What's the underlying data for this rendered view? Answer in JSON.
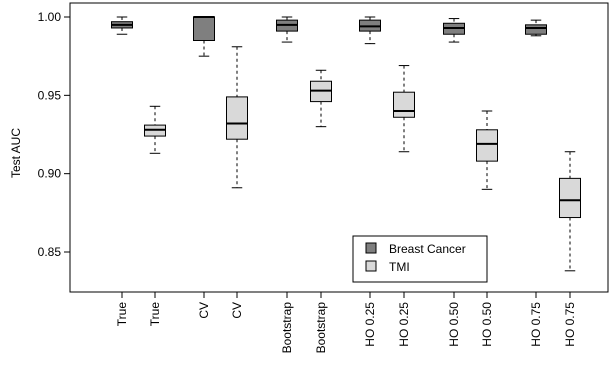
{
  "chart_data": {
    "type": "boxplot",
    "title": "",
    "xlabel": "",
    "ylabel": "Test AUC",
    "ylim": [
      0.82,
      1.0
    ],
    "yticks": [
      0.85,
      0.9,
      0.95,
      1.0
    ],
    "ytick_labels": [
      "0.85",
      "0.90",
      "0.95",
      "1.00"
    ],
    "grid": false,
    "legend_position": "bottom-right",
    "series": [
      {
        "name": "Breast Cancer",
        "color": "#7f7f7f",
        "boxes": [
          {
            "label": "True",
            "whisker_low": 0.989,
            "q1": 0.993,
            "median": 0.995,
            "q3": 0.997,
            "whisker_high": 1.0
          },
          {
            "label": "CV",
            "whisker_low": 0.975,
            "q1": 0.985,
            "median": 1.0,
            "q3": 1.0,
            "whisker_high": 1.0
          },
          {
            "label": "Bootstrap",
            "whisker_low": 0.984,
            "q1": 0.991,
            "median": 0.995,
            "q3": 0.998,
            "whisker_high": 1.0
          },
          {
            "label": "HO 0.25",
            "whisker_low": 0.983,
            "q1": 0.991,
            "median": 0.994,
            "q3": 0.998,
            "whisker_high": 1.0
          },
          {
            "label": "HO 0.50",
            "whisker_low": 0.984,
            "q1": 0.989,
            "median": 0.993,
            "q3": 0.996,
            "whisker_high": 0.999
          },
          {
            "label": "HO 0.75",
            "whisker_low": 0.988,
            "q1": 0.989,
            "median": 0.993,
            "q3": 0.995,
            "whisker_high": 0.998
          }
        ]
      },
      {
        "name": "TMI",
        "color": "#d9d9d9",
        "boxes": [
          {
            "label": "True",
            "whisker_low": 0.913,
            "q1": 0.924,
            "median": 0.928,
            "q3": 0.931,
            "whisker_high": 0.943
          },
          {
            "label": "CV",
            "whisker_low": 0.891,
            "q1": 0.922,
            "median": 0.932,
            "q3": 0.949,
            "whisker_high": 0.981
          },
          {
            "label": "Bootstrap",
            "whisker_low": 0.93,
            "q1": 0.946,
            "median": 0.953,
            "q3": 0.959,
            "whisker_high": 0.966
          },
          {
            "label": "HO 0.25",
            "whisker_low": 0.914,
            "q1": 0.936,
            "median": 0.94,
            "q3": 0.952,
            "whisker_high": 0.969
          },
          {
            "label": "HO 0.50",
            "whisker_low": 0.89,
            "q1": 0.908,
            "median": 0.919,
            "q3": 0.928,
            "whisker_high": 0.94
          },
          {
            "label": "HO 0.75",
            "whisker_low": 0.838,
            "q1": 0.872,
            "median": 0.883,
            "q3": 0.897,
            "whisker_high": 0.914
          }
        ]
      }
    ],
    "x_tick_labels": [
      "True",
      "True",
      "CV",
      "CV",
      "Bootstrap",
      "Bootstrap",
      "HO 0.25",
      "HO 0.25",
      "HO 0.50",
      "HO 0.50",
      "HO 0.75",
      "HO 0.75"
    ]
  }
}
